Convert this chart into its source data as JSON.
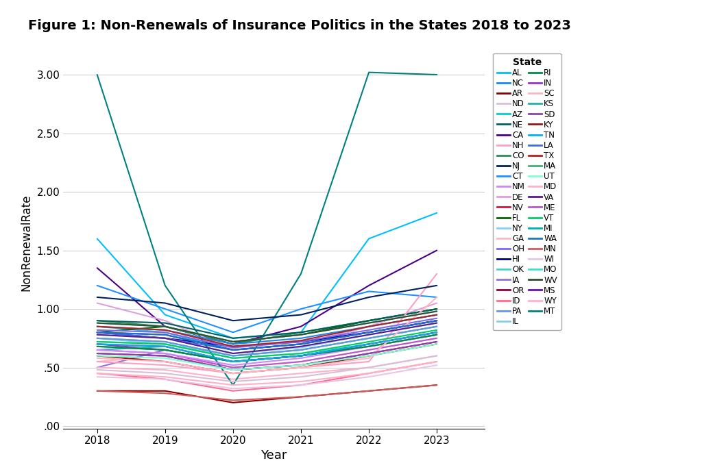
{
  "title": "Figure 1: Non-Renewals of Insurance Politics in the States 2018 to 2023",
  "xlabel": "Year",
  "ylabel": "NonRenewalRate",
  "years": [
    2018,
    2019,
    2020,
    2021,
    2022,
    2023
  ],
  "states": {
    "AL": {
      "color": "#00BFFF",
      "values": [
        1.6,
        0.95,
        0.75,
        0.8,
        1.6,
        1.82
      ]
    },
    "AR": {
      "color": "#8B0000",
      "values": [
        0.3,
        0.3,
        0.2,
        0.25,
        0.3,
        0.35
      ]
    },
    "AZ": {
      "color": "#00CED1",
      "values": [
        0.85,
        0.8,
        0.65,
        0.7,
        0.85,
        0.95
      ]
    },
    "CA": {
      "color": "#4B0082",
      "values": [
        1.35,
        0.85,
        0.7,
        0.85,
        1.2,
        1.5
      ]
    },
    "CO": {
      "color": "#2E8B57",
      "values": [
        0.9,
        0.85,
        0.7,
        0.8,
        0.9,
        1.0
      ]
    },
    "CT": {
      "color": "#1E90FF",
      "values": [
        1.2,
        1.0,
        0.8,
        1.0,
        1.15,
        1.1
      ]
    },
    "DE": {
      "color": "#DDA0DD",
      "values": [
        1.05,
        0.9,
        0.65,
        0.7,
        0.85,
        1.05
      ]
    },
    "FL": {
      "color": "#006400",
      "values": [
        0.8,
        0.85,
        0.72,
        0.78,
        0.9,
        1.0
      ]
    },
    "GA": {
      "color": "#FFB6C1",
      "values": [
        0.55,
        0.6,
        0.5,
        0.55,
        0.65,
        0.75
      ]
    },
    "HI": {
      "color": "#00008B",
      "values": [
        0.8,
        0.75,
        0.68,
        0.72,
        0.8,
        0.9
      ]
    },
    "IA": {
      "color": "#9370DB",
      "values": [
        0.5,
        0.65,
        0.55,
        0.6,
        0.7,
        0.8
      ]
    },
    "ID": {
      "color": "#FF6B8A",
      "values": [
        0.45,
        0.4,
        0.3,
        0.35,
        0.45,
        0.55
      ]
    },
    "IL": {
      "color": "#87CEEB",
      "values": [
        0.75,
        0.7,
        0.6,
        0.65,
        0.75,
        0.85
      ]
    },
    "IN": {
      "color": "#9932CC",
      "values": [
        0.7,
        0.65,
        0.55,
        0.6,
        0.7,
        0.8
      ]
    },
    "KS": {
      "color": "#20B2AA",
      "values": [
        0.65,
        0.68,
        0.55,
        0.6,
        0.68,
        0.78
      ]
    },
    "KY": {
      "color": "#8B1A1A",
      "values": [
        0.6,
        0.55,
        0.45,
        0.5,
        0.6,
        0.7
      ]
    },
    "LA": {
      "color": "#4169E1",
      "values": [
        0.8,
        0.75,
        0.65,
        0.7,
        0.8,
        0.9
      ]
    },
    "MA": {
      "color": "#3CB371",
      "values": [
        0.75,
        0.72,
        0.6,
        0.65,
        0.75,
        0.85
      ]
    },
    "MD": {
      "color": "#FFB0C8",
      "values": [
        0.5,
        0.48,
        0.4,
        0.45,
        0.5,
        0.6
      ]
    },
    "ME": {
      "color": "#BA55D3",
      "values": [
        0.65,
        0.62,
        0.5,
        0.55,
        0.65,
        0.75
      ]
    },
    "MI": {
      "color": "#00AEAE",
      "values": [
        0.68,
        0.65,
        0.55,
        0.6,
        0.68,
        0.78
      ]
    },
    "MN": {
      "color": "#CD5C5C",
      "values": [
        0.3,
        0.28,
        0.22,
        0.25,
        0.3,
        0.35
      ]
    },
    "MO": {
      "color": "#40E0D0",
      "values": [
        0.72,
        0.7,
        0.58,
        0.62,
        0.7,
        0.8
      ]
    },
    "MS": {
      "color": "#6A0DAD",
      "values": [
        0.8,
        0.78,
        0.65,
        0.7,
        0.8,
        0.9
      ]
    },
    "MT": {
      "color": "#008080",
      "values": [
        3.0,
        1.2,
        0.35,
        1.3,
        3.02,
        3.0
      ]
    },
    "NC": {
      "color": "#1C86EE",
      "values": [
        0.85,
        0.82,
        0.7,
        0.75,
        0.85,
        0.95
      ]
    },
    "ND": {
      "color": "#D8BFD8",
      "values": [
        0.48,
        0.45,
        0.38,
        0.42,
        0.5,
        0.6
      ]
    },
    "NE": {
      "color": "#005f5f",
      "values": [
        0.9,
        0.88,
        0.75,
        0.8,
        0.9,
        1.0
      ]
    },
    "NH": {
      "color": "#FF9EC4",
      "values": [
        0.55,
        0.52,
        0.45,
        0.5,
        0.55,
        1.3
      ]
    },
    "NJ": {
      "color": "#00205B",
      "values": [
        1.1,
        1.05,
        0.9,
        0.95,
        1.1,
        1.2
      ]
    },
    "NM": {
      "color": "#CC88FF",
      "values": [
        0.65,
        0.62,
        0.52,
        0.58,
        0.68,
        0.78
      ]
    },
    "NV": {
      "color": "#DC143C",
      "values": [
        0.7,
        0.68,
        0.55,
        0.6,
        0.7,
        0.8
      ]
    },
    "NY": {
      "color": "#87CEFA",
      "values": [
        0.78,
        0.75,
        0.62,
        0.67,
        0.78,
        0.88
      ]
    },
    "OH": {
      "color": "#7B68EE",
      "values": [
        0.82,
        0.8,
        0.67,
        0.72,
        0.82,
        0.92
      ]
    },
    "OK": {
      "color": "#48D1CC",
      "values": [
        0.88,
        0.85,
        0.72,
        0.78,
        0.88,
        0.98
      ]
    },
    "OR": {
      "color": "#8B0045",
      "values": [
        0.62,
        0.6,
        0.48,
        0.52,
        0.62,
        0.72
      ]
    },
    "PA": {
      "color": "#6495ED",
      "values": [
        0.75,
        0.72,
        0.6,
        0.65,
        0.75,
        0.85
      ]
    },
    "RI": {
      "color": "#008B45",
      "values": [
        0.68,
        0.65,
        0.55,
        0.6,
        0.68,
        0.78
      ]
    },
    "SC": {
      "color": "#FFB6C1",
      "values": [
        0.58,
        0.55,
        0.45,
        0.5,
        0.58,
        1.1
      ]
    },
    "SD": {
      "color": "#8B44AC",
      "values": [
        0.62,
        0.6,
        0.48,
        0.52,
        0.62,
        0.72
      ]
    },
    "TN": {
      "color": "#00B2EE",
      "values": [
        0.7,
        0.68,
        0.55,
        0.6,
        0.7,
        0.8
      ]
    },
    "TX": {
      "color": "#B22222",
      "values": [
        0.85,
        0.82,
        0.68,
        0.73,
        0.85,
        0.95
      ]
    },
    "UT": {
      "color": "#7FFFD4",
      "values": [
        0.6,
        0.58,
        0.48,
        0.52,
        0.6,
        0.7
      ]
    },
    "VA": {
      "color": "#551A8B",
      "values": [
        0.78,
        0.75,
        0.62,
        0.68,
        0.78,
        0.88
      ]
    },
    "VT": {
      "color": "#00CD66",
      "values": [
        0.72,
        0.7,
        0.58,
        0.62,
        0.72,
        0.82
      ]
    },
    "WA": {
      "color": "#1874CD",
      "values": [
        0.8,
        0.78,
        0.65,
        0.7,
        0.8,
        0.9
      ]
    },
    "WI": {
      "color": "#E8C4E8",
      "values": [
        0.42,
        0.4,
        0.32,
        0.35,
        0.42,
        0.52
      ]
    },
    "WV": {
      "color": "#2F4F2F",
      "values": [
        0.88,
        0.85,
        0.72,
        0.78,
        0.88,
        0.98
      ]
    },
    "WY": {
      "color": "#FFB0C8",
      "values": [
        0.45,
        0.42,
        0.35,
        0.38,
        0.45,
        0.55
      ]
    }
  },
  "ylim": [
    -0.02,
    3.15
  ],
  "yticks": [
    0.0,
    0.5,
    1.0,
    1.5,
    2.0,
    2.5,
    3.0
  ],
  "ytick_labels": [
    ".00",
    ".50",
    "1.00",
    "1.50",
    "2.00",
    "2.50",
    "3.00"
  ],
  "background_color": "#FFFFFF",
  "grid_color": "#CCCCCC",
  "legend_left_col": [
    "AL",
    "AR",
    "AZ",
    "CA",
    "CO",
    "CT",
    "DE",
    "FL",
    "GA",
    "HI",
    "IA",
    "ID",
    "IL",
    "IN",
    "KS",
    "KY",
    "LA",
    "MA",
    "MD",
    "ME",
    "MI",
    "MN",
    "MO",
    "MS",
    "MT"
  ],
  "legend_right_col": [
    "NC",
    "ND",
    "NE",
    "NH",
    "NJ",
    "NM",
    "NV",
    "NY",
    "OH",
    "OK",
    "OR",
    "PA",
    "RI",
    "SC",
    "SD",
    "TN",
    "TX",
    "UT",
    "VA",
    "VT",
    "WA",
    "WI",
    "WV",
    "WY"
  ]
}
